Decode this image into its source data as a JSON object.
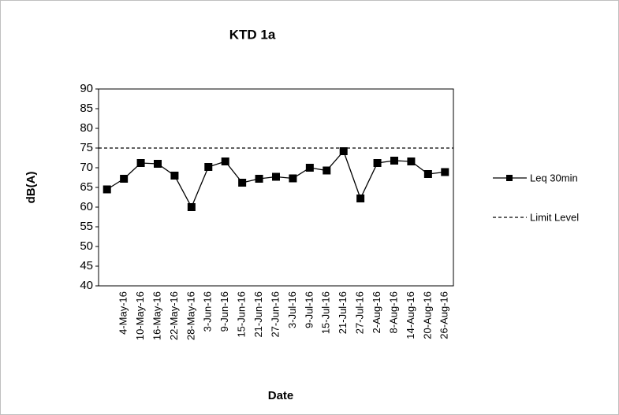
{
  "chart_data": {
    "type": "line",
    "title": "KTD 1a",
    "x_label": "Date",
    "y_label": "dB(A)",
    "categories": [
      null,
      "4-May-16",
      "10-May-16",
      "16-May-16",
      "22-May-16",
      "28-May-16",
      "3-Jun-16",
      "9-Jun-16",
      "15-Jun-16",
      "21-Jun-16",
      "27-Jun-16",
      "3-Jul-16",
      "9-Jul-16",
      "15-Jul-16",
      "21-Jul-16",
      "27-Jul-16",
      "2-Aug-16",
      "8-Aug-16",
      "14-Aug-16",
      "20-Aug-16",
      "26-Aug-16"
    ],
    "series": [
      {
        "name": "Leq 30min",
        "color": "#000000",
        "values": [
          64.5,
          67.2,
          71.2,
          71,
          68,
          60,
          70.2,
          71.6,
          66.2,
          67.2,
          67.7,
          67.3,
          70,
          69.3,
          74.2,
          62.2,
          71.2,
          71.8,
          71.6,
          68.4,
          68.9
        ]
      }
    ],
    "limit": {
      "name": "Limit Level",
      "value": 75,
      "color": "#000000"
    },
    "ylim": [
      40,
      90
    ],
    "yticks": [
      40,
      45,
      50,
      55,
      60,
      65,
      70,
      75,
      80,
      85,
      90
    ],
    "grid": false
  }
}
